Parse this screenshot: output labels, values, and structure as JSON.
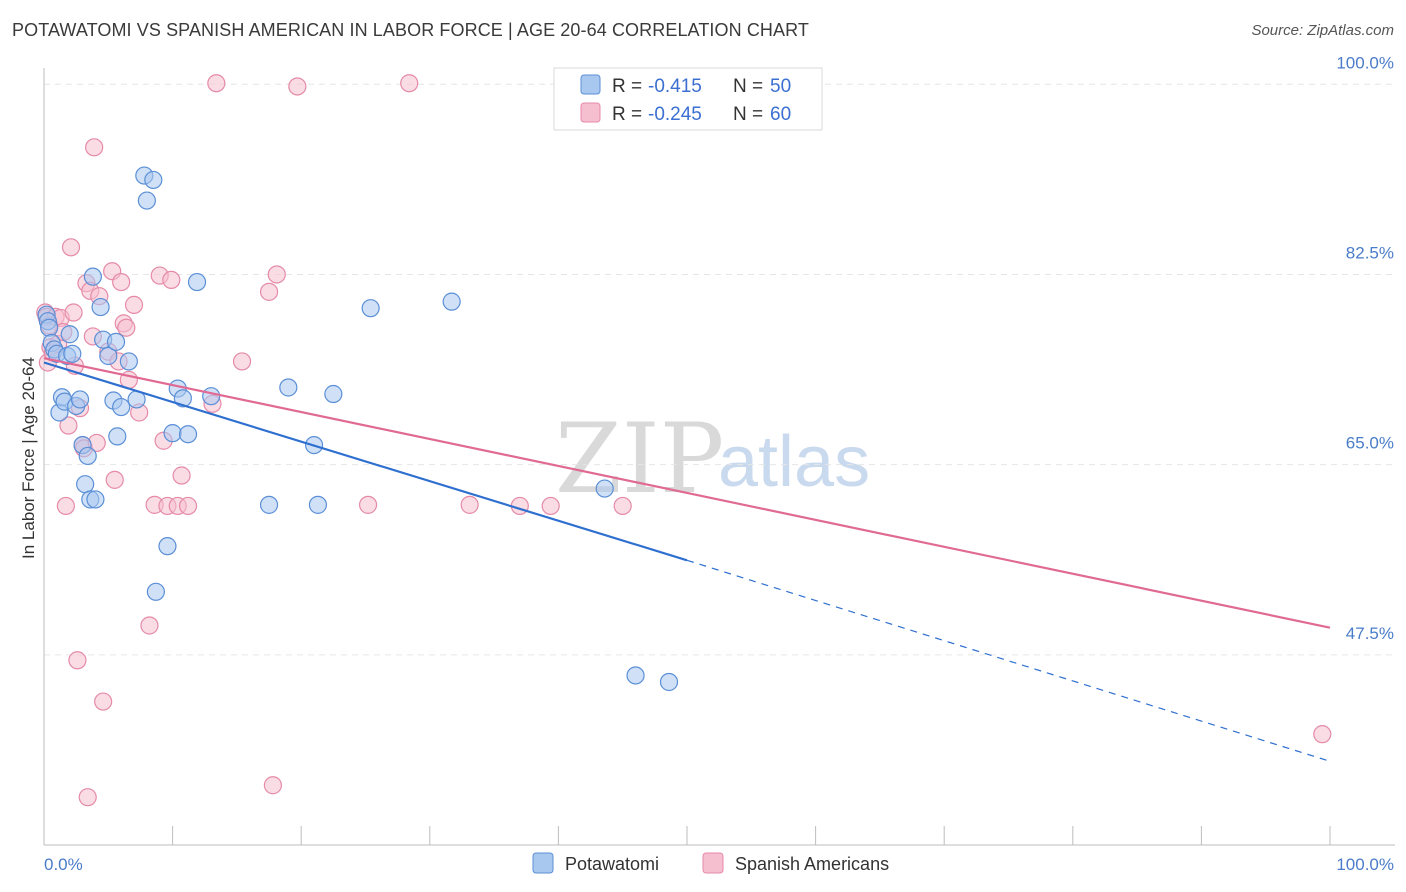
{
  "header": {
    "title": "POTAWATOMI VS SPANISH AMERICAN IN LABOR FORCE | AGE 20-64 CORRELATION CHART",
    "source": "Source: ZipAtlas.com"
  },
  "watermark": {
    "zip": "ZIP",
    "atlas": "atlas"
  },
  "colors": {
    "blue_fill": "#a9c8f0",
    "blue_stroke": "#5b8fd6",
    "blue_line": "#2f6fcf",
    "pink_fill": "#f6bfd0",
    "pink_stroke": "#e58aa8",
    "pink_line": "#e06a93",
    "tick_text": "#4a7cc9",
    "grid": "#e6e6e6"
  },
  "legend": {
    "rows": [
      {
        "r_label": "R =",
        "r_value": "-0.415",
        "n_label": "N =",
        "n_value": "50"
      },
      {
        "r_label": "R =",
        "r_value": "-0.245",
        "n_label": "N =",
        "n_value": "60"
      }
    ]
  },
  "chart_data": {
    "type": "scatter",
    "title": "POTAWATOMI VS SPANISH AMERICAN IN LABOR FORCE | AGE 20-64 CORRELATION CHART",
    "xlabel": "",
    "ylabel": "In Labor Force | Age 20-64",
    "xlim": [
      0,
      100
    ],
    "ylim": [
      30,
      101.5
    ],
    "x_tick_labels": [
      "0.0%",
      "100.0%"
    ],
    "y_ticks": [
      47.5,
      65.0,
      82.5,
      100.0
    ],
    "y_tick_labels": [
      "47.5%",
      "65.0%",
      "82.5%",
      "100.0%"
    ],
    "grid": true,
    "legend_position": "top-center",
    "series": [
      {
        "name": "Potawatomi",
        "r": -0.415,
        "n": 50,
        "trend": {
          "x0": 0,
          "y0": 74.4,
          "x1": 50,
          "y1": 56.2,
          "dash_to_x": 100,
          "dash_to_y": 37.7
        },
        "points": [
          [
            0.2,
            78.8
          ],
          [
            0.3,
            78.2
          ],
          [
            0.4,
            77.6
          ],
          [
            0.6,
            76.2
          ],
          [
            0.8,
            75.6
          ],
          [
            1.0,
            75.2
          ],
          [
            1.2,
            69.8
          ],
          [
            1.4,
            71.2
          ],
          [
            1.6,
            70.8
          ],
          [
            1.8,
            75.0
          ],
          [
            2.0,
            77.0
          ],
          [
            2.2,
            75.2
          ],
          [
            2.5,
            70.4
          ],
          [
            2.8,
            71.0
          ],
          [
            3.0,
            66.8
          ],
          [
            3.2,
            63.2
          ],
          [
            3.4,
            65.8
          ],
          [
            3.6,
            61.8
          ],
          [
            3.8,
            82.3
          ],
          [
            4.0,
            61.8
          ],
          [
            4.4,
            79.5
          ],
          [
            4.6,
            76.5
          ],
          [
            5.0,
            75.0
          ],
          [
            5.4,
            70.9
          ],
          [
            5.6,
            76.3
          ],
          [
            5.7,
            67.6
          ],
          [
            6.0,
            70.3
          ],
          [
            6.6,
            74.5
          ],
          [
            7.2,
            71.0
          ],
          [
            7.8,
            91.6
          ],
          [
            8.0,
            89.3
          ],
          [
            8.5,
            91.2
          ],
          [
            8.7,
            53.3
          ],
          [
            9.6,
            57.5
          ],
          [
            10.0,
            67.9
          ],
          [
            10.4,
            72.0
          ],
          [
            10.8,
            71.1
          ],
          [
            11.2,
            67.8
          ],
          [
            11.9,
            81.8
          ],
          [
            13.0,
            71.3
          ],
          [
            17.5,
            61.3
          ],
          [
            19.0,
            72.1
          ],
          [
            21.0,
            66.8
          ],
          [
            21.3,
            61.3
          ],
          [
            22.5,
            71.5
          ],
          [
            25.4,
            79.4
          ],
          [
            31.7,
            80.0
          ],
          [
            43.6,
            62.8
          ],
          [
            46.0,
            45.6
          ],
          [
            48.6,
            45.0
          ]
        ]
      },
      {
        "name": "Spanish Americans",
        "r": -0.245,
        "n": 60,
        "trend": {
          "x0": 0,
          "y0": 74.8,
          "x1": 100,
          "y1": 50.0
        },
        "points": [
          [
            0.1,
            79.0
          ],
          [
            0.2,
            78.6
          ],
          [
            0.3,
            74.4
          ],
          [
            0.5,
            75.8
          ],
          [
            0.7,
            75.3
          ],
          [
            0.9,
            78.6
          ],
          [
            1.1,
            76.1
          ],
          [
            1.3,
            78.5
          ],
          [
            1.5,
            77.2
          ],
          [
            1.7,
            61.2
          ],
          [
            1.9,
            68.6
          ],
          [
            2.1,
            85.0
          ],
          [
            2.3,
            79.0
          ],
          [
            2.4,
            74.1
          ],
          [
            2.6,
            47.0
          ],
          [
            2.8,
            70.2
          ],
          [
            3.0,
            66.8
          ],
          [
            3.1,
            66.5
          ],
          [
            3.3,
            81.7
          ],
          [
            3.4,
            34.4
          ],
          [
            3.6,
            81.0
          ],
          [
            3.8,
            76.8
          ],
          [
            3.9,
            94.2
          ],
          [
            4.1,
            67.0
          ],
          [
            4.3,
            80.5
          ],
          [
            4.6,
            43.2
          ],
          [
            5.0,
            75.4
          ],
          [
            5.3,
            82.8
          ],
          [
            5.5,
            63.6
          ],
          [
            5.8,
            74.5
          ],
          [
            6.0,
            81.8
          ],
          [
            6.2,
            78.0
          ],
          [
            6.4,
            77.6
          ],
          [
            6.6,
            72.8
          ],
          [
            7.0,
            79.7
          ],
          [
            7.4,
            69.8
          ],
          [
            8.2,
            50.2
          ],
          [
            8.6,
            61.3
          ],
          [
            9.0,
            82.4
          ],
          [
            9.3,
            67.2
          ],
          [
            9.6,
            61.2
          ],
          [
            9.9,
            82.0
          ],
          [
            10.4,
            61.2
          ],
          [
            10.7,
            64.0
          ],
          [
            11.2,
            61.2
          ],
          [
            13.1,
            70.6
          ],
          [
            13.4,
            100.1
          ],
          [
            15.4,
            74.5
          ],
          [
            17.5,
            80.9
          ],
          [
            17.8,
            35.5
          ],
          [
            18.1,
            82.5
          ],
          [
            19.7,
            99.8
          ],
          [
            25.2,
            61.3
          ],
          [
            28.4,
            100.1
          ],
          [
            33.1,
            61.3
          ],
          [
            37.0,
            61.2
          ],
          [
            39.4,
            61.2
          ],
          [
            45.0,
            61.2
          ],
          [
            99.4,
            40.2
          ],
          [
            0.4,
            77.8
          ]
        ]
      }
    ]
  }
}
